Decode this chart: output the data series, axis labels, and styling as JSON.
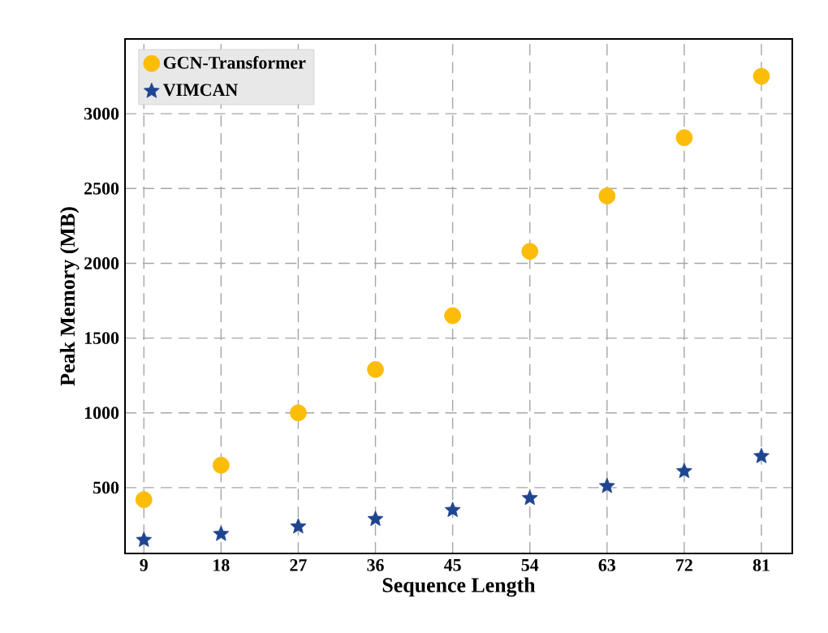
{
  "chart_data": {
    "type": "scatter",
    "xlabel": "Sequence Length",
    "ylabel": "Peak Memory (MB)",
    "x": [
      9,
      18,
      27,
      36,
      45,
      54,
      63,
      72,
      81
    ],
    "series": [
      {
        "name": "GCN-Transformer",
        "color": "#fbbd08",
        "marker": "circle",
        "values": [
          420,
          650,
          1000,
          1290,
          1650,
          2080,
          2450,
          2840,
          3250
        ]
      },
      {
        "name": "VIMCAN",
        "color": "#1f4591",
        "marker": "star",
        "values": [
          150,
          190,
          240,
          290,
          350,
          430,
          510,
          610,
          710
        ]
      }
    ],
    "xlim": [
      6.8,
      84.6
    ],
    "ylim": [
      60,
      3500
    ],
    "xticks": [
      9,
      18,
      27,
      36,
      45,
      54,
      63,
      72,
      81
    ],
    "yticks": [
      500,
      1000,
      1500,
      2000,
      2500,
      3000
    ],
    "grid": true,
    "legend": "top left"
  }
}
